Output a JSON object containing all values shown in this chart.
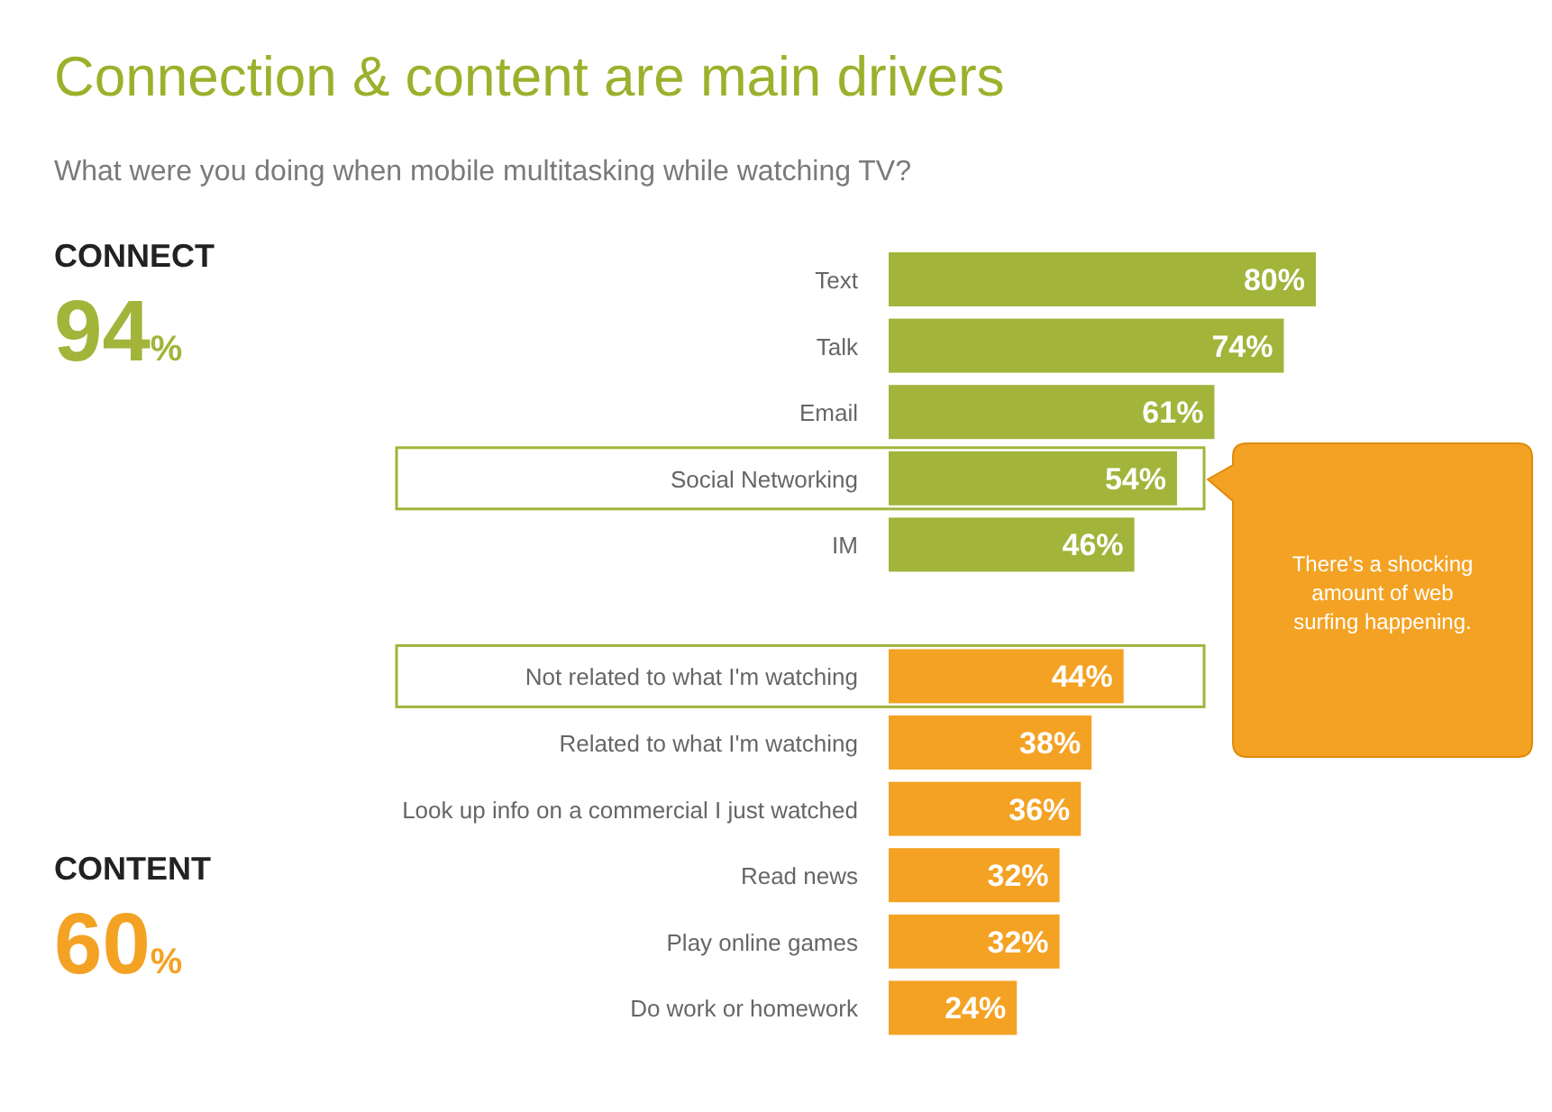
{
  "chart_data": {
    "type": "bar",
    "orientation": "horizontal",
    "title": "Connection & content are main drivers",
    "subtitle": "What were you doing when mobile multitasking while watching TV?",
    "categories": [
      "Text",
      "Talk",
      "Email",
      "Social Networking",
      "IM",
      "Not related to what I'm watching",
      "Related to what I'm watching",
      "Look up info on a commercial I just watched",
      "Read news",
      "Play online games",
      "Do work or homework"
    ],
    "values": [
      80,
      74,
      61,
      54,
      46,
      44,
      38,
      36,
      32,
      32,
      24
    ],
    "colors": [
      "#a2b43a",
      "#a2b43a",
      "#a2b43a",
      "#a2b43a",
      "#a2b43a",
      "#f4a223",
      "#f4a223",
      "#f4a223",
      "#f4a223",
      "#f4a223",
      "#f4a223"
    ],
    "value_labels": [
      "80%",
      "74%",
      "61%",
      "54%",
      "46%",
      "44%",
      "38%",
      "36%",
      "32%",
      "32%",
      "24%"
    ],
    "annotations": [
      "CONNECT",
      "94%",
      "CONTENT",
      "60%",
      "There's a shocking amount of web surfing happening."
    ]
  }
}
